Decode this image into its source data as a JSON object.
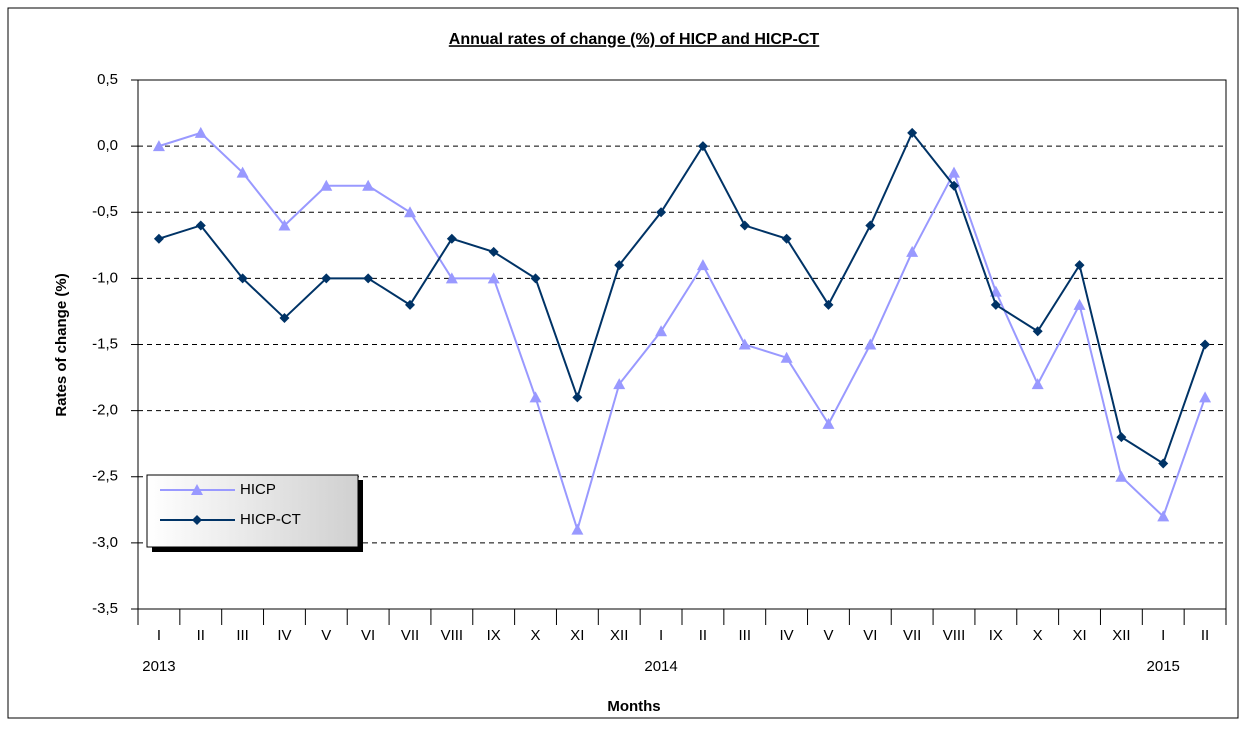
{
  "chart_data": {
    "type": "line",
    "title": "Annual rates of change (%) of HICP and HICP-CT",
    "x_label": "Months",
    "y_label": "Rates of change (%)",
    "categories": [
      "I",
      "II",
      "III",
      "IV",
      "V",
      "VI",
      "VII",
      "VIII",
      "IX",
      "X",
      "XI",
      "XII",
      "I",
      "II",
      "III",
      "IV",
      "V",
      "VI",
      "VII",
      "VIII",
      "IX",
      "X",
      "XI",
      "XII",
      "I",
      "II"
    ],
    "category_years": [
      "2013",
      null,
      null,
      null,
      null,
      null,
      null,
      null,
      null,
      null,
      null,
      null,
      "2014",
      null,
      null,
      null,
      null,
      null,
      null,
      null,
      null,
      null,
      null,
      null,
      "2015",
      null
    ],
    "series": [
      {
        "name": "HICP",
        "color": "#9999ff",
        "marker": "triangle",
        "values": [
          0.0,
          0.1,
          -0.2,
          -0.6,
          -0.3,
          -0.3,
          -0.5,
          -1.0,
          -1.0,
          -1.9,
          -2.9,
          -1.8,
          -1.4,
          -0.9,
          -1.5,
          -1.6,
          -2.1,
          -1.5,
          -0.8,
          -0.2,
          -1.1,
          -1.8,
          -1.2,
          -2.5,
          -2.8,
          -1.9
        ]
      },
      {
        "name": "HICP-CT",
        "color": "#003366",
        "marker": "diamond",
        "values": [
          -0.7,
          -0.6,
          -1.0,
          -1.3,
          -1.0,
          -1.0,
          -1.2,
          -0.7,
          -0.8,
          -1.0,
          -1.9,
          -0.9,
          -0.5,
          0.0,
          -0.6,
          -0.7,
          -1.2,
          -0.6,
          0.1,
          -0.3,
          -1.2,
          -1.4,
          -0.9,
          -2.2,
          -2.4,
          -1.5
        ]
      }
    ],
    "ylim": [
      -3.5,
      0.5
    ],
    "yticks": [
      {
        "value": -3.5,
        "label": "-3,5"
      },
      {
        "value": -3.0,
        "label": "-3,0"
      },
      {
        "value": -2.5,
        "label": "-2,5"
      },
      {
        "value": -2.0,
        "label": "-2,0"
      },
      {
        "value": -1.5,
        "label": "-1,5"
      },
      {
        "value": -1.0,
        "label": "-1,0"
      },
      {
        "value": -0.5,
        "label": "-0,5"
      },
      {
        "value": 0.0,
        "label": "0,0"
      },
      {
        "value": 0.5,
        "label": "0,5"
      }
    ],
    "grid": true,
    "legend": "lower left"
  }
}
